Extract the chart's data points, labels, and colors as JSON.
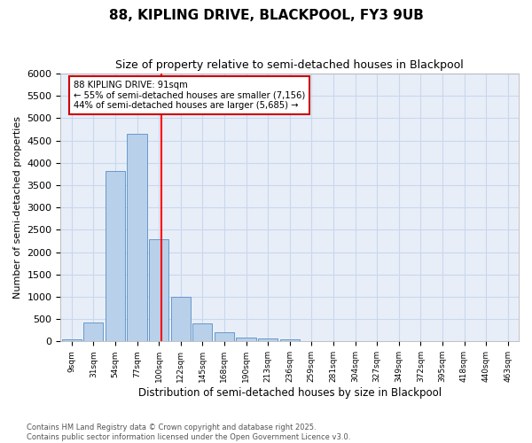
{
  "title1": "88, KIPLING DRIVE, BLACKPOOL, FY3 9UB",
  "title2": "Size of property relative to semi-detached houses in Blackpool",
  "xlabel": "Distribution of semi-detached houses by size in Blackpool",
  "ylabel": "Number of semi-detached properties",
  "property_size": 91,
  "pct_smaller": 55,
  "n_smaller": 7156,
  "pct_larger": 44,
  "n_larger": 5685,
  "bin_labels": [
    "9sqm",
    "31sqm",
    "54sqm",
    "77sqm",
    "100sqm",
    "122sqm",
    "145sqm",
    "168sqm",
    "190sqm",
    "213sqm",
    "236sqm",
    "259sqm",
    "281sqm",
    "304sqm",
    "327sqm",
    "349sqm",
    "372sqm",
    "395sqm",
    "418sqm",
    "440sqm",
    "463sqm"
  ],
  "bar_heights": [
    50,
    430,
    3820,
    4660,
    2290,
    990,
    400,
    210,
    90,
    75,
    50,
    0,
    0,
    0,
    0,
    0,
    0,
    0,
    0,
    0,
    0
  ],
  "bar_color": "#b8d0ea",
  "bar_edge_color": "#6699cc",
  "grid_color": "#c8d8ee",
  "background_color": "#e8eef8",
  "red_line_bin": 4,
  "annotation_box_color": "#cc0000",
  "footer1": "Contains HM Land Registry data © Crown copyright and database right 2025.",
  "footer2": "Contains public sector information licensed under the Open Government Licence v3.0.",
  "ylim": [
    0,
    6000
  ],
  "yticks": [
    0,
    500,
    1000,
    1500,
    2000,
    2500,
    3000,
    3500,
    4000,
    4500,
    5000,
    5500,
    6000
  ]
}
